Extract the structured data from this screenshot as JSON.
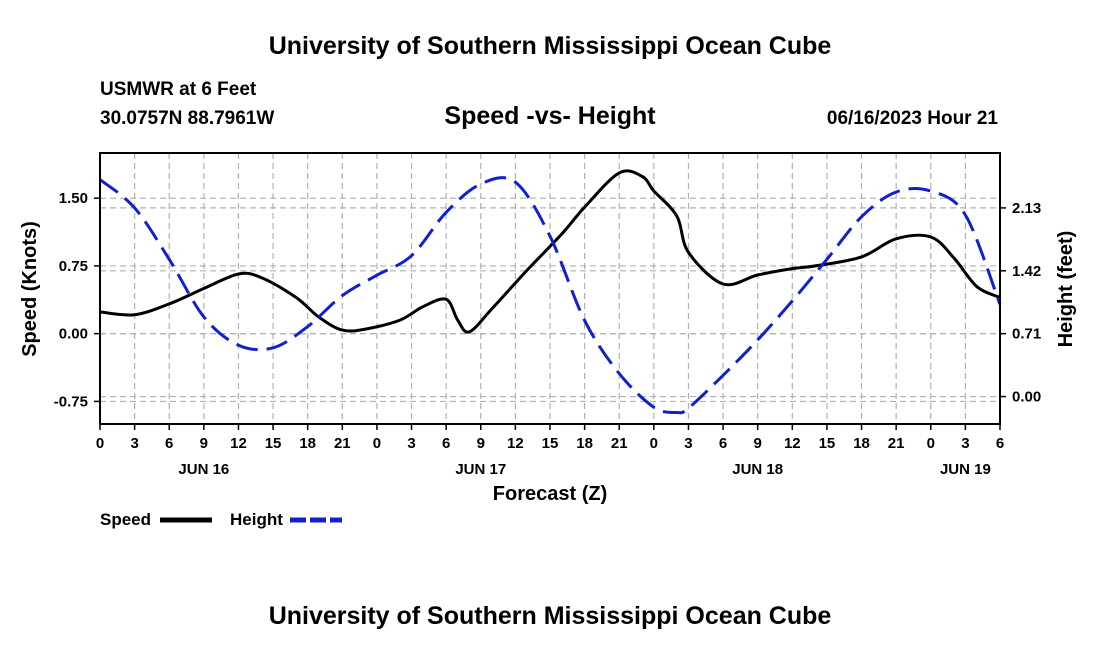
{
  "header": {
    "title": "University of Southern Mississippi Ocean Cube",
    "station": "USMWR at 6 Feet",
    "coords": "30.0757N  88.7961W",
    "datetime": "06/16/2023 Hour 21",
    "footer_title": "University of Southern Mississippi Ocean Cube"
  },
  "legend": {
    "speed": "Speed",
    "height": "Height"
  },
  "colors": {
    "speed": "#000000",
    "height": "#1020d0",
    "grid": "#b0b0b0"
  },
  "chart_data": {
    "type": "line",
    "title": "Speed -vs- Height",
    "xlabel": "Forecast (Z)",
    "ylabel_left": "Speed (Knots)",
    "ylabel_right": "Height (feet)",
    "x_hours_range": [
      0,
      78
    ],
    "x_tick_labels": [
      "0",
      "3",
      "6",
      "9",
      "12",
      "15",
      "18",
      "21",
      "0",
      "3",
      "6",
      "9",
      "12",
      "15",
      "18",
      "21",
      "0",
      "3",
      "6",
      "9",
      "12",
      "15",
      "18",
      "21",
      "0",
      "3",
      "6"
    ],
    "date_labels": [
      {
        "label": "JUN 16",
        "hour": 9
      },
      {
        "label": "JUN 17",
        "hour": 33
      },
      {
        "label": "JUN 18",
        "hour": 57
      },
      {
        "label": "JUN 19",
        "hour": 75
      }
    ],
    "y_left": {
      "min": -1.0,
      "max": 2.0,
      "ticks": [
        -0.75,
        0.0,
        0.75,
        1.5
      ],
      "tick_labels": [
        "-0.75",
        "0.00",
        "0.75",
        "1.50"
      ]
    },
    "y_right": {
      "min": -0.31,
      "max": 2.75,
      "ticks": [
        0.0,
        0.71,
        1.42,
        2.13
      ],
      "tick_labels": [
        "0.00",
        "0.71",
        "1.42",
        "2.13"
      ]
    },
    "grid": true,
    "series": [
      {
        "name": "Speed",
        "axis": "left",
        "style": "solid",
        "x": [
          0,
          3,
          6,
          9,
          12,
          14,
          17,
          19,
          21,
          23,
          26,
          28,
          30,
          31,
          32,
          34,
          37,
          40,
          42,
          45,
          47,
          48,
          50,
          51,
          54,
          57,
          60,
          62,
          66,
          69,
          72,
          74,
          76,
          78
        ],
        "y": [
          0.24,
          0.21,
          0.33,
          0.5,
          0.66,
          0.62,
          0.4,
          0.18,
          0.04,
          0.05,
          0.15,
          0.3,
          0.38,
          0.15,
          0.02,
          0.28,
          0.7,
          1.1,
          1.4,
          1.78,
          1.74,
          1.58,
          1.3,
          0.9,
          0.55,
          0.65,
          0.72,
          0.75,
          0.85,
          1.05,
          1.07,
          0.84,
          0.52,
          0.4
        ]
      },
      {
        "name": "Height",
        "axis": "right",
        "style": "dashed",
        "x": [
          0,
          3,
          6,
          9,
          12,
          15,
          18,
          21,
          24,
          27,
          30,
          33,
          36,
          39,
          42,
          45,
          48,
          50,
          51,
          54,
          57,
          60,
          63,
          66,
          69,
          72,
          75,
          78
        ],
        "y": [
          2.45,
          2.13,
          1.55,
          0.9,
          0.58,
          0.55,
          0.79,
          1.14,
          1.37,
          1.59,
          2.08,
          2.4,
          2.42,
          1.81,
          0.86,
          0.26,
          -0.12,
          -0.18,
          -0.13,
          0.24,
          0.64,
          1.08,
          1.55,
          2.03,
          2.31,
          2.32,
          2.05,
          1.04
        ]
      }
    ]
  }
}
